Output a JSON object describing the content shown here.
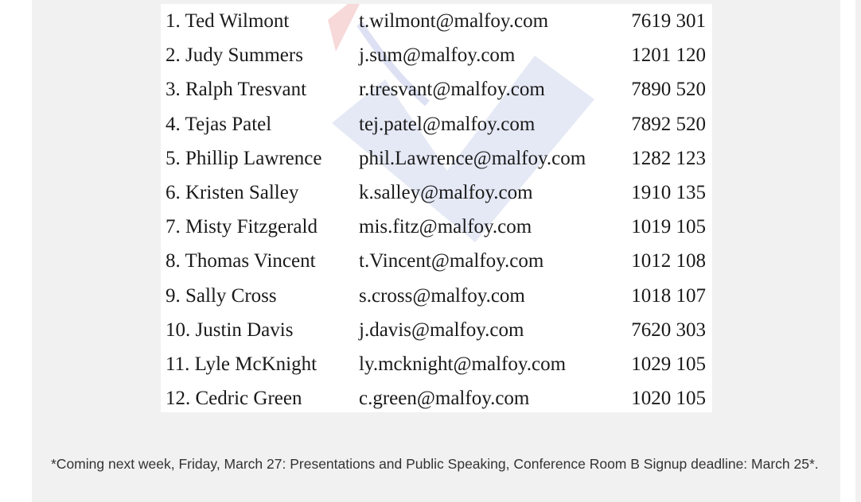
{
  "contacts": [
    {
      "name": "1. Ted Wilmont",
      "email": "t.wilmont@malfoy.com",
      "phone": "7619 301"
    },
    {
      "name": "2. Judy Summers",
      "email": "j.sum@malfoy.com",
      "phone": "1201 120"
    },
    {
      "name": "3. Ralph Tresvant",
      "email": "r.tresvant@malfoy.com",
      "phone": "7890 520"
    },
    {
      "name": "4. Tejas Patel",
      "email": "tej.patel@malfoy.com",
      "phone": "7892 520"
    },
    {
      "name": "5. Phillip Lawrence",
      "email": "phil.Lawrence@malfoy.com",
      "phone": "1282 123"
    },
    {
      "name": "6. Kristen Salley",
      "email": "k.salley@malfoy.com",
      "phone": "1910 135"
    },
    {
      "name": "7. Misty Fitzgerald",
      "email": "mis.fitz@malfoy.com",
      "phone": "1019 105"
    },
    {
      "name": "8. Thomas Vincent",
      "email": "t.Vincent@malfoy.com",
      "phone": "1012 108"
    },
    {
      "name": "9. Sally Cross",
      "email": "s.cross@malfoy.com",
      "phone": "1018 107"
    },
    {
      "name": "10. Justin Davis",
      "email": "j.davis@malfoy.com",
      "phone": "7620 303"
    },
    {
      "name": "11. Lyle McKnight",
      "email": "ly.mcknight@malfoy.com",
      "phone": "1029 105"
    },
    {
      "name": "12. Cedric Green",
      "email": "c.green@malfoy.com",
      "phone": "1020 105"
    }
  ],
  "footnote": "*Coming next week, Friday, March 27: Presentations and Public Speaking, Conference Room B Signup deadline: March 25*.",
  "colors": {
    "page_background": "#f1f1f1",
    "image_background": "#ffffff",
    "watermark_blue": "#d9def0",
    "watermark_red": "#f3c9c9"
  }
}
